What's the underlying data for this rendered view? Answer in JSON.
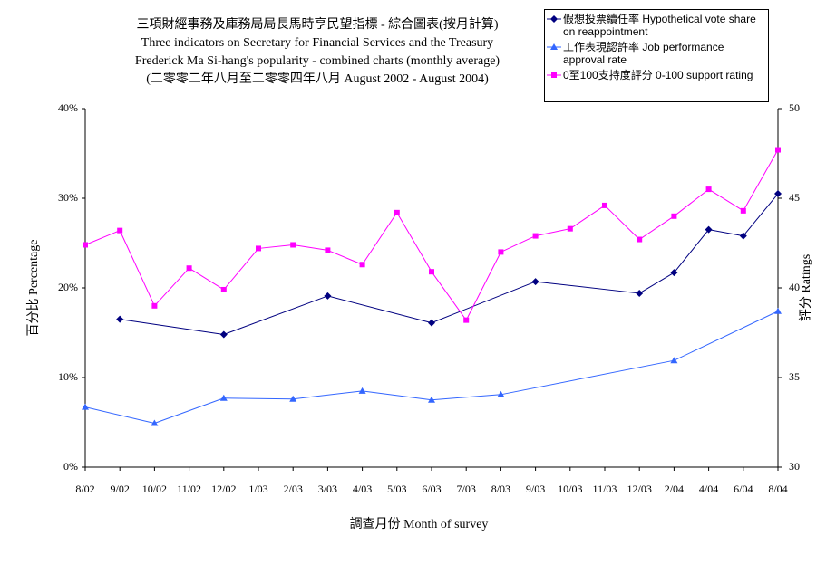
{
  "chart_data": {
    "type": "line",
    "title": [
      "三項財經事務及庫務局局長馬時亨民望指標 - 綜合圖表(按月計算)",
      "Three indicators on Secretary for Financial Services and the Treasury",
      "Frederick Ma Si-hang's popularity - combined charts (monthly average)",
      "(二零零二年八月至二零零四年八月 August 2002 - August 2004)"
    ],
    "x_label": "調查月份 Month of survey",
    "y_label": "百分比 Percentage",
    "y2_label": "評分 Ratings",
    "categories": [
      "8/02",
      "9/02",
      "10/02",
      "11/02",
      "12/02",
      "1/03",
      "2/03",
      "3/03",
      "4/03",
      "5/03",
      "6/03",
      "7/03",
      "8/03",
      "9/03",
      "10/03",
      "11/03",
      "12/03",
      "2/04",
      "4/04",
      "6/04",
      "8/04"
    ],
    "ylim": [
      0,
      40
    ],
    "yticks": [
      {
        "value": 0,
        "label": "0%"
      },
      {
        "value": 10,
        "label": "10%"
      },
      {
        "value": 20,
        "label": "20%"
      },
      {
        "value": 30,
        "label": "30%"
      },
      {
        "value": 40,
        "label": "40%"
      }
    ],
    "y2lim": [
      30,
      50
    ],
    "y2ticks": [
      30,
      35,
      40,
      45,
      50
    ],
    "grid": false,
    "legend": "top-right",
    "series": [
      {
        "name": "假想投票續任率 Hypothetical vote share on reappointment",
        "color": "#000080",
        "marker": "diamond",
        "values": [
          null,
          16.5,
          null,
          null,
          14.8,
          null,
          null,
          19.1,
          null,
          null,
          16.1,
          null,
          null,
          20.7,
          null,
          null,
          19.4,
          21.7,
          26.5,
          25.8,
          30.5
        ]
      },
      {
        "name": "工作表現認許率 Job performance approval rate",
        "color": "#3366ff",
        "marker": "triangle",
        "values": [
          6.7,
          null,
          4.9,
          null,
          7.7,
          null,
          7.6,
          null,
          8.5,
          null,
          7.5,
          null,
          8.1,
          null,
          null,
          null,
          null,
          11.9,
          null,
          null,
          17.4
        ]
      },
      {
        "name": "0至100支持度評分 0-100 support rating",
        "color": "#ff00ff",
        "marker": "square",
        "axis": "y2",
        "values": [
          42.4,
          43.2,
          39.0,
          41.1,
          39.9,
          42.2,
          42.4,
          42.1,
          41.3,
          44.2,
          40.9,
          38.2,
          42.0,
          42.9,
          43.3,
          44.6,
          42.7,
          44.0,
          45.5,
          44.3,
          47.7
        ]
      }
    ]
  }
}
